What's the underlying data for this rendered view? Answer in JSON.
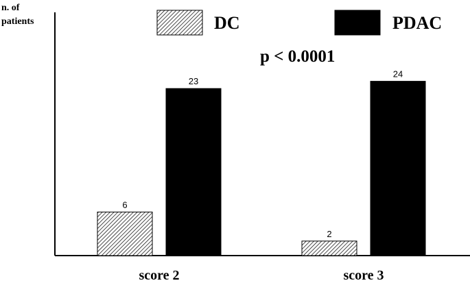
{
  "chart_data": {
    "type": "bar",
    "ylabel": "n. of patients",
    "categories": [
      "score 2",
      "score 3"
    ],
    "series": [
      {
        "name": "DC",
        "values": [
          6,
          2
        ],
        "pattern": "hatched",
        "color": "#000000"
      },
      {
        "name": "PDAC",
        "values": [
          23,
          24
        ],
        "pattern": "solid",
        "color": "#000000"
      }
    ],
    "ylim": [
      0,
      24
    ],
    "grid": false,
    "legend_position": "top",
    "annotations": [
      "p < 0.0001"
    ]
  }
}
